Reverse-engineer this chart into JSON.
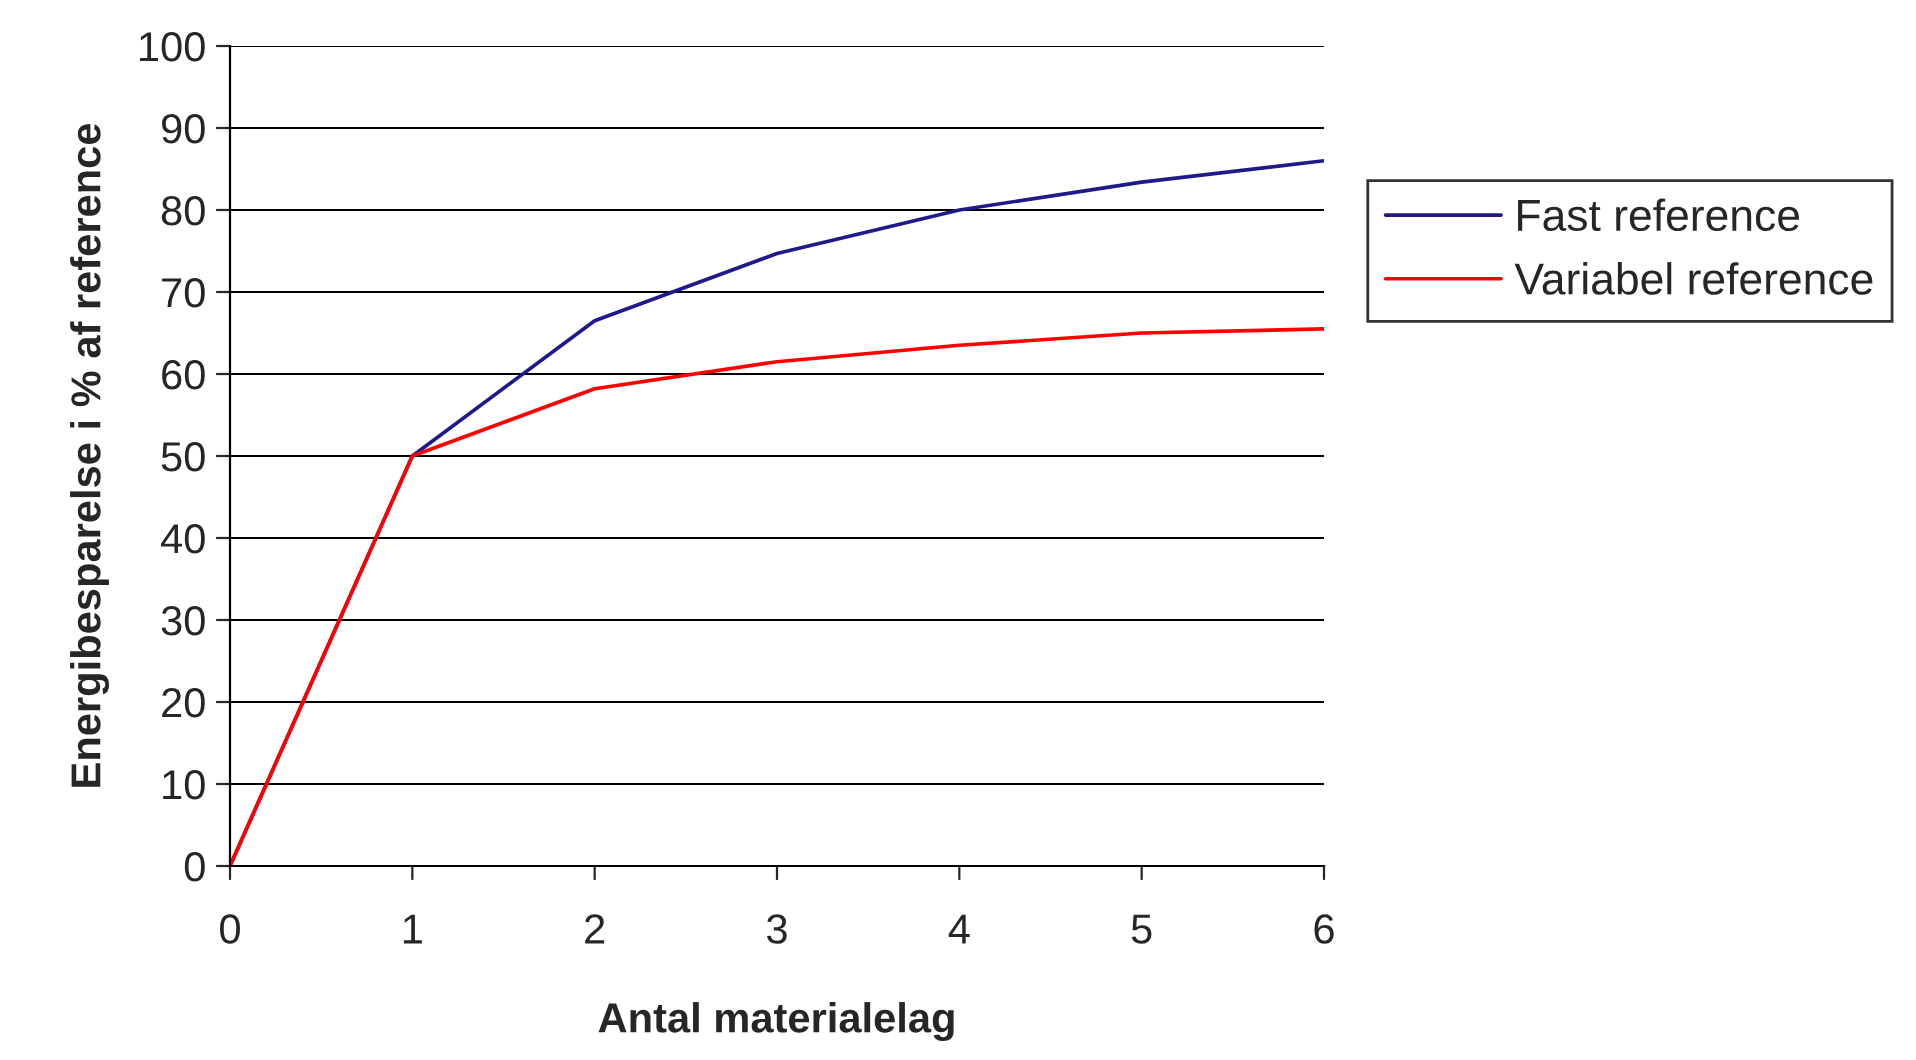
{
  "chart_data": {
    "type": "line",
    "xlabel": "Antal materialelag",
    "ylabel": "Energibesparelse i % af reference",
    "x": [
      0,
      1,
      2,
      3,
      4,
      5,
      6
    ],
    "series": [
      {
        "name": "Fast reference",
        "color": "#1f1a8a",
        "values": [
          0,
          50,
          66.5,
          74.7,
          80,
          83.4,
          86
        ]
      },
      {
        "name": "Variabel reference",
        "color": "#ff0000",
        "values": [
          0,
          50,
          58.2,
          61.5,
          63.5,
          65,
          65.5
        ]
      }
    ],
    "xlim": [
      0,
      6
    ],
    "xticks": [
      0,
      1,
      2,
      3,
      4,
      5,
      6
    ],
    "ylim": [
      0,
      100
    ],
    "yticks": [
      0,
      10,
      20,
      30,
      40,
      50,
      60,
      70,
      80,
      90,
      100
    ],
    "grid": "y",
    "legend": "right",
    "marker": "none",
    "line_style": "solid"
  }
}
